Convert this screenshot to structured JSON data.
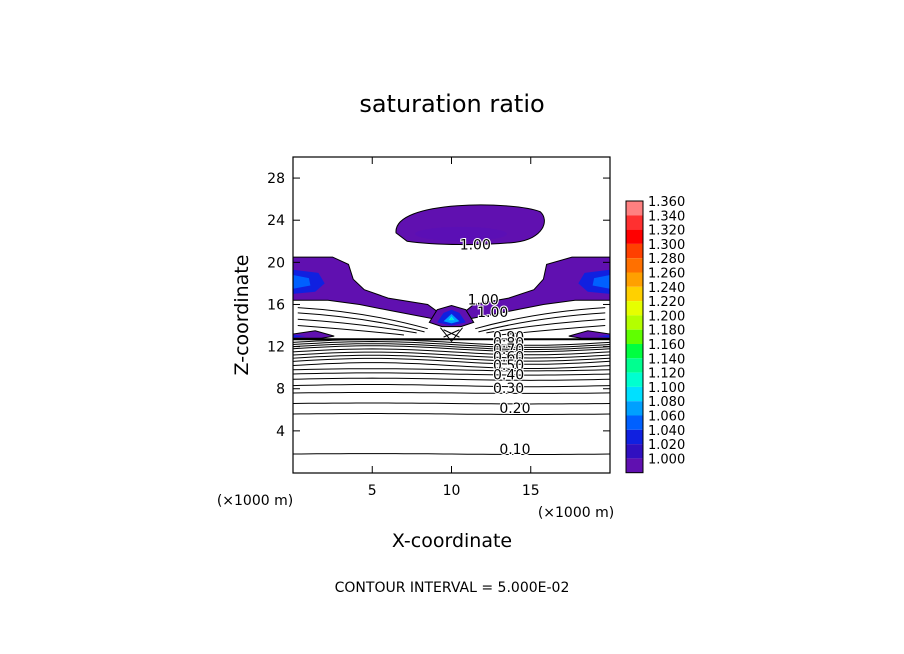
{
  "chart_data": {
    "type": "contour",
    "title": "saturation ratio",
    "xlabel": "X-coordinate",
    "ylabel": "Z-coordinate",
    "x_unit_left": "(×1000 m)",
    "x_unit_right": "(×1000 m)",
    "xlim": [
      0,
      20
    ],
    "ylim": [
      0,
      30
    ],
    "x_ticks": [
      5,
      10,
      15
    ],
    "y_ticks": [
      4,
      8,
      12,
      16,
      20,
      24,
      28
    ],
    "contour_interval_text": "CONTOUR INTERVAL = 5.000E-02",
    "shaded_levels": [
      "1.360",
      "1.340",
      "1.320",
      "1.300",
      "1.280",
      "1.260",
      "1.240",
      "1.220",
      "1.200",
      "1.180",
      "1.160",
      "1.140",
      "1.120",
      "1.100",
      "1.080",
      "1.060",
      "1.040",
      "1.020",
      "1.000"
    ],
    "level_colors": [
      "#ff8080",
      "#ff3030",
      "#ff0000",
      "#ff4000",
      "#ff7000",
      "#ffa000",
      "#ffd000",
      "#e6ff00",
      "#b4ff00",
      "#60ff00",
      "#00ff40",
      "#00ff90",
      "#00ffd0",
      "#00e0ff",
      "#00a0ff",
      "#0060ff",
      "#1020e0",
      "#3010c0",
      "#6010b0"
    ],
    "contour_labels": [
      {
        "text": "1.00",
        "x": 11.5,
        "y": 21.2
      },
      {
        "text": "1.00",
        "x": 12.0,
        "y": 16.0
      },
      {
        "text": "1.00",
        "x": 12.6,
        "y": 14.8
      },
      {
        "text": "0.90",
        "x": 13.6,
        "y": 12.5
      },
      {
        "text": "0.80",
        "x": 13.6,
        "y": 11.9
      },
      {
        "text": "0.70",
        "x": 13.6,
        "y": 11.3
      },
      {
        "text": "0.60",
        "x": 13.6,
        "y": 10.6
      },
      {
        "text": "0.50",
        "x": 13.6,
        "y": 9.8
      },
      {
        "text": "0.40",
        "x": 13.6,
        "y": 8.9
      },
      {
        "text": "0.30",
        "x": 13.6,
        "y": 7.6
      },
      {
        "text": "0.20",
        "x": 14.0,
        "y": 5.7
      },
      {
        "text": "0.10",
        "x": 14.0,
        "y": 1.8
      }
    ]
  }
}
